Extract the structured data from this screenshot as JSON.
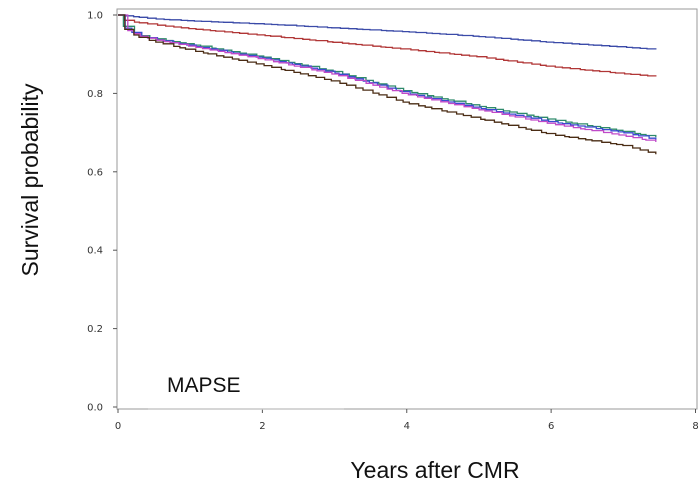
{
  "chart_data": {
    "type": "line",
    "step": true,
    "xlabel": "Years after CMR",
    "ylabel": "Survival probability",
    "annotation": "MAPSE",
    "xlim": [
      0,
      8
    ],
    "ylim": [
      0,
      1.0
    ],
    "xticks": [
      "0",
      "2",
      "4",
      "6",
      "8"
    ],
    "yticks": [
      "0.0",
      "0.2",
      "0.4",
      "0.6",
      "0.8",
      "1.0"
    ],
    "grid": false,
    "series": [
      {
        "color": "#3a4aa8",
        "x": [
          0,
          0.5,
          1,
          2,
          3,
          4,
          5,
          6,
          7,
          7.45
        ],
        "y": [
          1.0,
          0.99,
          0.985,
          0.977,
          0.967,
          0.957,
          0.945,
          0.93,
          0.918,
          0.912
        ]
      },
      {
        "color": "#b03535",
        "x": [
          0,
          0.1,
          0.5,
          1,
          2,
          3,
          4,
          5,
          6,
          7,
          7.45
        ],
        "y": [
          1.0,
          0.985,
          0.975,
          0.965,
          0.948,
          0.93,
          0.912,
          0.893,
          0.868,
          0.85,
          0.843
        ]
      },
      {
        "color": "#2e8a6a",
        "x": [
          0,
          0.05,
          0.15,
          0.3,
          0.5,
          1,
          2,
          3,
          4,
          5,
          6,
          7,
          7.45
        ],
        "y": [
          1.0,
          0.975,
          0.96,
          0.948,
          0.94,
          0.925,
          0.893,
          0.855,
          0.805,
          0.767,
          0.733,
          0.703,
          0.688
        ]
      },
      {
        "color": "#3b4bd0",
        "x": [
          0,
          0.05,
          0.15,
          0.3,
          0.5,
          1,
          2,
          3,
          4,
          5,
          6,
          7,
          7.45
        ],
        "y": [
          1.0,
          0.974,
          0.959,
          0.947,
          0.938,
          0.922,
          0.89,
          0.852,
          0.8,
          0.762,
          0.727,
          0.7,
          0.682
        ]
      },
      {
        "color": "#c04ac8",
        "x": [
          0,
          0.05,
          0.15,
          0.3,
          0.5,
          1,
          2,
          3,
          4,
          5,
          6,
          7,
          7.45
        ],
        "y": [
          1.0,
          0.973,
          0.958,
          0.946,
          0.937,
          0.92,
          0.887,
          0.848,
          0.797,
          0.758,
          0.722,
          0.692,
          0.676
        ]
      },
      {
        "color": "#4a2c14",
        "x": [
          0,
          0.05,
          0.15,
          0.3,
          0.5,
          1,
          2,
          3,
          4,
          5,
          6,
          7,
          7.45
        ],
        "y": [
          1.0,
          0.97,
          0.955,
          0.942,
          0.932,
          0.91,
          0.872,
          0.83,
          0.775,
          0.735,
          0.695,
          0.667,
          0.645
        ]
      }
    ]
  }
}
